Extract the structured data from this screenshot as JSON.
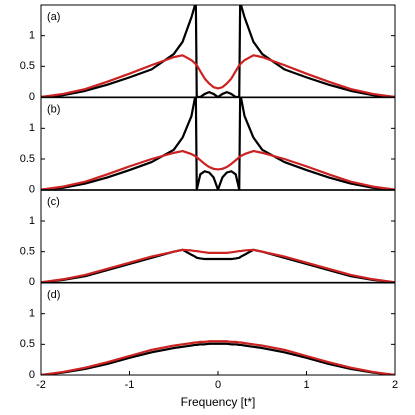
{
  "chart_data": [
    {
      "type": "line",
      "annotation": "(a)",
      "x": [
        -2,
        -1.75,
        -1.5,
        -1.25,
        -1,
        -0.75,
        -0.5,
        -0.4,
        -0.3,
        -0.26,
        -0.25,
        -0.24,
        -0.2,
        -0.15,
        -0.1,
        -0.05,
        0,
        0.05,
        0.1,
        0.15,
        0.2,
        0.24,
        0.25,
        0.26,
        0.3,
        0.4,
        0.5,
        0.75,
        1,
        1.25,
        1.5,
        1.75,
        2
      ],
      "series": [
        {
          "color": "#000000",
          "values": [
            0,
            0.03,
            0.1,
            0.2,
            0.32,
            0.45,
            0.7,
            0.9,
            1.3,
            1.5,
            1.5,
            0,
            0,
            0.05,
            0.08,
            0.05,
            0,
            0.05,
            0.08,
            0.05,
            0,
            0,
            1.5,
            1.5,
            1.3,
            0.9,
            0.7,
            0.45,
            0.32,
            0.2,
            0.1,
            0.03,
            0
          ]
        },
        {
          "color": "#cc2222",
          "values": [
            0,
            0.05,
            0.13,
            0.25,
            0.38,
            0.52,
            0.65,
            0.68,
            0.6,
            0.55,
            0.53,
            0.52,
            0.42,
            0.3,
            0.22,
            0.16,
            0.14,
            0.16,
            0.22,
            0.3,
            0.42,
            0.52,
            0.53,
            0.55,
            0.6,
            0.68,
            0.65,
            0.52,
            0.38,
            0.25,
            0.13,
            0.05,
            0
          ]
        }
      ],
      "xlim": [
        -2,
        2
      ],
      "ylim": [
        0,
        1.5
      ],
      "yticks": [
        0,
        0.5,
        1
      ]
    },
    {
      "type": "line",
      "annotation": "(b)",
      "x": [
        -2,
        -1.75,
        -1.5,
        -1.25,
        -1,
        -0.75,
        -0.5,
        -0.4,
        -0.3,
        -0.26,
        -0.25,
        -0.24,
        -0.2,
        -0.15,
        -0.1,
        -0.05,
        0,
        0.05,
        0.1,
        0.15,
        0.2,
        0.24,
        0.25,
        0.26,
        0.3,
        0.4,
        0.5,
        0.75,
        1,
        1.25,
        1.5,
        1.75,
        2
      ],
      "series": [
        {
          "color": "#000000",
          "values": [
            0,
            0.03,
            0.1,
            0.2,
            0.32,
            0.45,
            0.65,
            0.85,
            1.2,
            1.5,
            1.5,
            0,
            0.25,
            0.3,
            0.28,
            0.2,
            0,
            0.2,
            0.28,
            0.3,
            0.25,
            0,
            1.5,
            1.5,
            1.2,
            0.85,
            0.65,
            0.45,
            0.32,
            0.2,
            0.1,
            0.03,
            0
          ]
        },
        {
          "color": "#cc2222",
          "values": [
            0,
            0.05,
            0.13,
            0.25,
            0.38,
            0.5,
            0.6,
            0.63,
            0.58,
            0.55,
            0.54,
            0.53,
            0.48,
            0.42,
            0.37,
            0.34,
            0.33,
            0.34,
            0.37,
            0.42,
            0.48,
            0.53,
            0.54,
            0.55,
            0.58,
            0.63,
            0.6,
            0.5,
            0.38,
            0.25,
            0.13,
            0.05,
            0
          ]
        }
      ],
      "xlim": [
        -2,
        2
      ],
      "ylim": [
        0,
        1.5
      ],
      "yticks": [
        0,
        0.5,
        1
      ]
    },
    {
      "type": "line",
      "annotation": "(c)",
      "x": [
        -2,
        -1.75,
        -1.5,
        -1.25,
        -1,
        -0.75,
        -0.5,
        -0.4,
        -0.3,
        -0.26,
        -0.25,
        -0.24,
        -0.2,
        -0.15,
        -0.1,
        -0.05,
        0,
        0.05,
        0.1,
        0.15,
        0.2,
        0.24,
        0.25,
        0.26,
        0.3,
        0.4,
        0.5,
        0.75,
        1,
        1.25,
        1.5,
        1.75,
        2
      ],
      "series": [
        {
          "color": "#000000",
          "values": [
            0,
            0.04,
            0.1,
            0.2,
            0.3,
            0.4,
            0.5,
            0.53,
            0.45,
            0.42,
            0.41,
            0.4,
            0.39,
            0.38,
            0.38,
            0.38,
            0.38,
            0.38,
            0.38,
            0.38,
            0.39,
            0.4,
            0.41,
            0.42,
            0.45,
            0.53,
            0.5,
            0.4,
            0.3,
            0.2,
            0.1,
            0.04,
            0
          ]
        },
        {
          "color": "#cc2222",
          "values": [
            0,
            0.05,
            0.12,
            0.22,
            0.32,
            0.42,
            0.5,
            0.53,
            0.52,
            0.51,
            0.51,
            0.51,
            0.5,
            0.49,
            0.48,
            0.48,
            0.48,
            0.48,
            0.48,
            0.49,
            0.5,
            0.51,
            0.51,
            0.51,
            0.52,
            0.53,
            0.5,
            0.42,
            0.32,
            0.22,
            0.12,
            0.05,
            0
          ]
        }
      ],
      "xlim": [
        -2,
        2
      ],
      "ylim": [
        0,
        1.5
      ],
      "yticks": [
        0,
        0.5,
        1
      ]
    },
    {
      "type": "line",
      "annotation": "(d)",
      "x_label": "Frequency [t*]",
      "x": [
        -2,
        -1.75,
        -1.5,
        -1.25,
        -1,
        -0.75,
        -0.5,
        -0.4,
        -0.3,
        -0.26,
        -0.25,
        -0.24,
        -0.2,
        -0.15,
        -0.1,
        -0.05,
        0,
        0.05,
        0.1,
        0.15,
        0.2,
        0.24,
        0.25,
        0.26,
        0.3,
        0.4,
        0.5,
        0.75,
        1,
        1.25,
        1.5,
        1.75,
        2
      ],
      "series": [
        {
          "color": "#000000",
          "values": [
            0,
            0.04,
            0.1,
            0.18,
            0.28,
            0.37,
            0.44,
            0.46,
            0.48,
            0.49,
            0.49,
            0.49,
            0.5,
            0.5,
            0.51,
            0.51,
            0.51,
            0.51,
            0.51,
            0.5,
            0.5,
            0.49,
            0.49,
            0.49,
            0.48,
            0.46,
            0.44,
            0.37,
            0.28,
            0.18,
            0.1,
            0.04,
            0
          ]
        },
        {
          "color": "#cc2222",
          "values": [
            0,
            0.05,
            0.12,
            0.21,
            0.31,
            0.41,
            0.48,
            0.5,
            0.52,
            0.53,
            0.53,
            0.53,
            0.54,
            0.54,
            0.55,
            0.55,
            0.55,
            0.55,
            0.55,
            0.54,
            0.54,
            0.53,
            0.53,
            0.53,
            0.52,
            0.5,
            0.48,
            0.41,
            0.31,
            0.21,
            0.12,
            0.05,
            0
          ]
        }
      ],
      "xlim": [
        -2,
        2
      ],
      "ylim": [
        0,
        1.5
      ],
      "yticks": [
        0,
        0.5,
        1
      ],
      "xticks": [
        -2,
        -1,
        0,
        1,
        2
      ]
    }
  ]
}
